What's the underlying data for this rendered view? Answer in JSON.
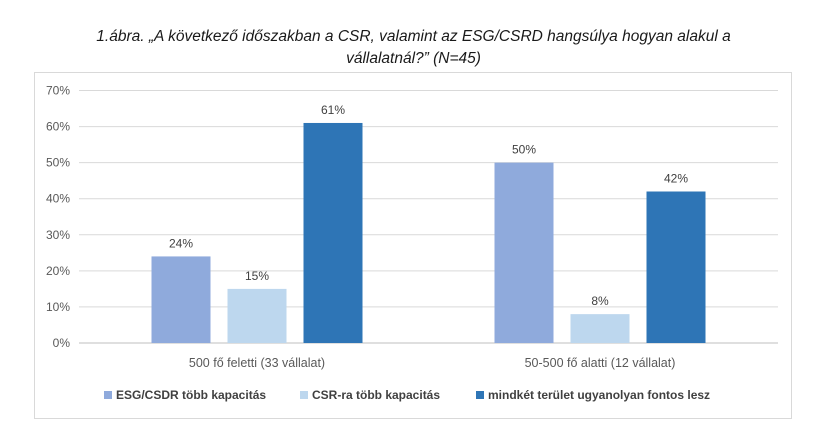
{
  "chart_data": {
    "type": "bar",
    "title_line1": "1.ábra. „A következő időszakban a CSR, valamint az ESG/CSRD hangsúlya hogyan alakul a",
    "title_line2": "vállalatnál?” (N=45)",
    "categories": [
      "500 fő feletti (33 vállalat)",
      "50-500 fő alatti (12 vállalat)"
    ],
    "series": [
      {
        "name": "ESG/CSDR több kapacitás",
        "values": [
          24,
          50
        ],
        "color": "#8faadc"
      },
      {
        "name": "CSR-ra több kapacitás",
        "values": [
          15,
          8
        ],
        "color": "#bdd7ee"
      },
      {
        "name": "mindkét terület ugyanolyan fontos lesz",
        "values": [
          61,
          42
        ],
        "color": "#2e75b6"
      }
    ],
    "ylim": [
      0,
      70
    ],
    "yticks": [
      "0%",
      "10%",
      "20%",
      "30%",
      "40%",
      "50%",
      "60%",
      "70%"
    ],
    "data_labels": [
      [
        "24%",
        "50%"
      ],
      [
        "15%",
        "8%"
      ],
      [
        "61%",
        "42%"
      ]
    ],
    "legend_position": "bottom",
    "grid": true
  }
}
